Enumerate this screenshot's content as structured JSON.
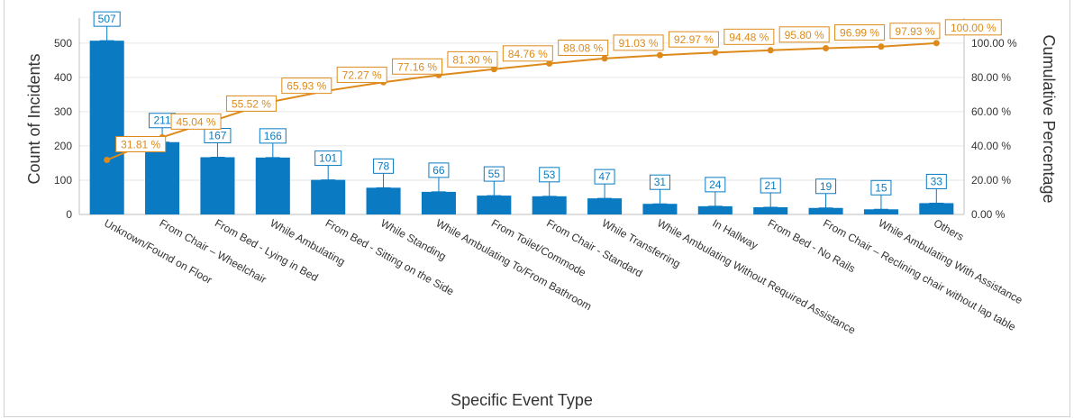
{
  "chart_data": {
    "type": "bar",
    "subtype": "pareto",
    "title": "",
    "xlabel": "Specific Event Type",
    "ylabel": "Count of Incidents",
    "y2label": "Cumulative Percentage",
    "ylim": [
      0,
      560
    ],
    "y2lim": [
      0,
      112
    ],
    "yticks": [
      0,
      100,
      200,
      300,
      400,
      500
    ],
    "y2ticks": [
      "0.00 %",
      "20.00 %",
      "40.00 %",
      "60.00 %",
      "80.00 %",
      "100.00 %"
    ],
    "categories": [
      "Unknown/Found on Floor",
      "From Chair – Wheelchair",
      "From Bed - Lying in Bed",
      "While Ambulating",
      "From Bed - Sitting on the Side",
      "While Standing",
      "While Ambulating To/From Bathroom",
      "From Toilet/Commode",
      "From Chair - Standard",
      "While Transferring",
      "While Ambulating Without Required Assistance",
      "In Hallway",
      "From Bed - No Rails",
      "From Chair – Reclining chair without lap table",
      "While Ambulating With Assistance",
      "Others"
    ],
    "series": [
      {
        "type": "bar",
        "axis": "left",
        "values": [
          507,
          211,
          167,
          166,
          101,
          78,
          66,
          55,
          53,
          47,
          31,
          24,
          21,
          19,
          15,
          33
        ],
        "labels": [
          "507",
          "211",
          "167",
          "166",
          "101",
          "78",
          "66",
          "55",
          "53",
          "47",
          "31",
          "24",
          "21",
          "19",
          "15",
          "33"
        ],
        "color": "#0a7bc2"
      },
      {
        "type": "line",
        "axis": "right",
        "values": [
          31.81,
          45.04,
          55.52,
          65.93,
          72.27,
          77.16,
          81.3,
          84.76,
          88.08,
          91.03,
          92.97,
          94.48,
          95.8,
          96.99,
          97.93,
          100.0
        ],
        "labels": [
          "31.81 %",
          "45.04 %",
          "55.52 %",
          "65.93 %",
          "72.27 %",
          "77.16 %",
          "81.30 %",
          "84.76 %",
          "88.08 %",
          "91.03 %",
          "92.97 %",
          "94.48 %",
          "95.80 %",
          "96.99 %",
          "97.93 %",
          "100.00 %"
        ],
        "color": "#dd8a1b"
      }
    ],
    "grid": true,
    "legend": "none"
  }
}
